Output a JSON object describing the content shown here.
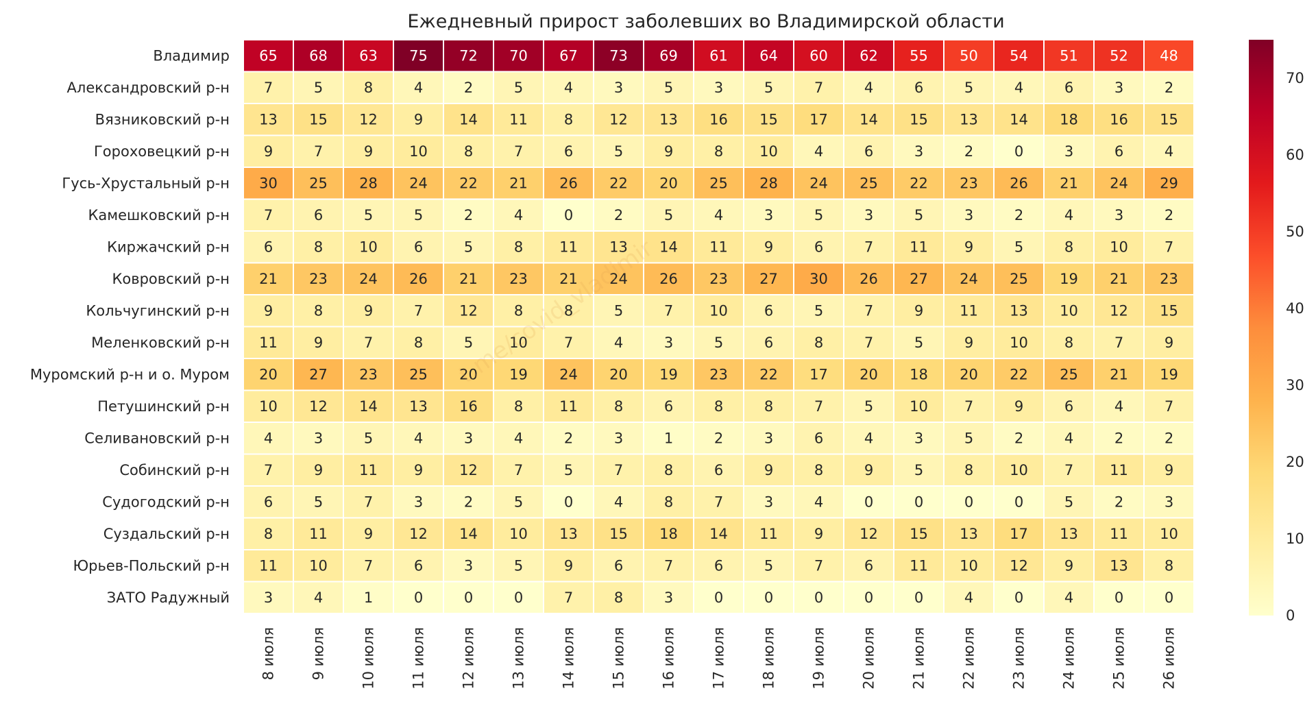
{
  "chart_data": {
    "type": "heatmap",
    "title": "Ежедневный прирост заболевших во Владимирской области",
    "watermark": "t.me/covid_vladimir",
    "rows": [
      "Владимир",
      "Александровский р-н",
      "Вязниковский р-н",
      "Гороховецкий р-н",
      "Гусь-Хрустальный р-н",
      "Камешковский р-н",
      "Киржачский р-н",
      "Ковровский р-н",
      "Кольчугинский р-н",
      "Меленковский р-н",
      "Муромский р-н и о. Муром",
      "Петушинский р-н",
      "Селивановский р-н",
      "Собинский р-н",
      "Судогодский р-н",
      "Суздальский р-н",
      "Юрьев-Польский р-н",
      "ЗАТО Радужный"
    ],
    "columns": [
      "8 июля",
      "9 июля",
      "10 июля",
      "11 июля",
      "12 июля",
      "13 июля",
      "14 июля",
      "15 июля",
      "16 июля",
      "17 июля",
      "18 июля",
      "19 июля",
      "20 июля",
      "21 июля",
      "22 июля",
      "23 июля",
      "24 июля",
      "25 июля",
      "26 июля"
    ],
    "values": [
      [
        65,
        68,
        63,
        75,
        72,
        70,
        67,
        73,
        69,
        61,
        64,
        60,
        62,
        55,
        50,
        54,
        51,
        52,
        48
      ],
      [
        7,
        5,
        8,
        4,
        2,
        5,
        4,
        3,
        5,
        3,
        5,
        7,
        4,
        6,
        5,
        4,
        6,
        3,
        2
      ],
      [
        13,
        15,
        12,
        9,
        14,
        11,
        8,
        12,
        13,
        16,
        15,
        17,
        14,
        15,
        13,
        14,
        18,
        16,
        15
      ],
      [
        9,
        7,
        9,
        10,
        8,
        7,
        6,
        5,
        9,
        8,
        10,
        4,
        6,
        3,
        2,
        0,
        3,
        6,
        4
      ],
      [
        30,
        25,
        28,
        24,
        22,
        21,
        26,
        22,
        20,
        25,
        28,
        24,
        25,
        22,
        23,
        26,
        21,
        24,
        29
      ],
      [
        7,
        6,
        5,
        5,
        2,
        4,
        0,
        2,
        5,
        4,
        3,
        5,
        3,
        5,
        3,
        2,
        4,
        3,
        2
      ],
      [
        6,
        8,
        10,
        6,
        5,
        8,
        11,
        13,
        14,
        11,
        9,
        6,
        7,
        11,
        9,
        5,
        8,
        10,
        7
      ],
      [
        21,
        23,
        24,
        26,
        21,
        23,
        21,
        24,
        26,
        23,
        27,
        30,
        26,
        27,
        24,
        25,
        19,
        21,
        23
      ],
      [
        9,
        8,
        9,
        7,
        12,
        8,
        8,
        5,
        7,
        10,
        6,
        5,
        7,
        9,
        11,
        13,
        10,
        12,
        15
      ],
      [
        11,
        9,
        7,
        8,
        5,
        10,
        7,
        4,
        3,
        5,
        6,
        8,
        7,
        5,
        9,
        10,
        8,
        7,
        9
      ],
      [
        20,
        27,
        23,
        25,
        20,
        19,
        24,
        20,
        19,
        23,
        22,
        17,
        20,
        18,
        20,
        22,
        25,
        21,
        19
      ],
      [
        10,
        12,
        14,
        13,
        16,
        8,
        11,
        8,
        6,
        8,
        8,
        7,
        5,
        10,
        7,
        9,
        6,
        4,
        7
      ],
      [
        4,
        3,
        5,
        4,
        3,
        4,
        2,
        3,
        1,
        2,
        3,
        6,
        4,
        3,
        5,
        2,
        4,
        2,
        2
      ],
      [
        7,
        9,
        11,
        9,
        12,
        7,
        5,
        7,
        8,
        6,
        9,
        8,
        9,
        5,
        8,
        10,
        7,
        11,
        9
      ],
      [
        6,
        5,
        7,
        3,
        2,
        5,
        0,
        4,
        8,
        7,
        3,
        4,
        0,
        0,
        0,
        0,
        5,
        2,
        3
      ],
      [
        8,
        11,
        9,
        12,
        14,
        10,
        13,
        15,
        18,
        14,
        11,
        9,
        12,
        15,
        13,
        17,
        13,
        11,
        10
      ],
      [
        11,
        10,
        7,
        6,
        3,
        5,
        9,
        6,
        7,
        6,
        5,
        7,
        6,
        11,
        10,
        12,
        9,
        13,
        8
      ],
      [
        3,
        4,
        1,
        0,
        0,
        0,
        7,
        8,
        3,
        0,
        0,
        0,
        0,
        0,
        4,
        0,
        4,
        0,
        0
      ]
    ],
    "vmin": 0,
    "vmax": 75,
    "colorbar_ticks": [
      0,
      10,
      20,
      30,
      40,
      50,
      60,
      70
    ],
    "colormap": "YlOrRd",
    "colormap_stops": [
      "#ffffcc",
      "#ffeda0",
      "#fed976",
      "#feb24c",
      "#fd8d3c",
      "#fc4e2a",
      "#e31a1c",
      "#bd0026",
      "#800026"
    ]
  }
}
